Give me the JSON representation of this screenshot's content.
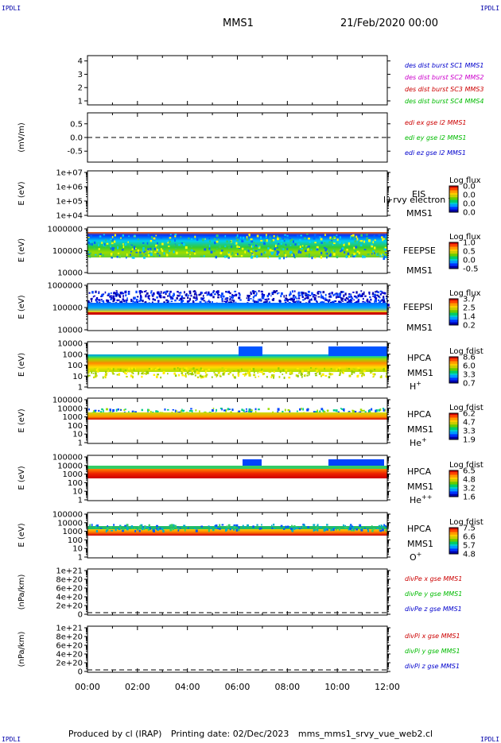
{
  "corners": {
    "tl": "IPDLI",
    "tr": "IPDLI",
    "bl": "IPDLI",
    "br": "IPDLI"
  },
  "header": {
    "spacecraft": "MMS1",
    "date": "21/Feb/2020 00:00"
  },
  "footer": {
    "producer": "Produced by cl (IRAP)",
    "print_date": "Printing date: 02/Dec/2023",
    "filename": "mms_mms1_srvy_vue_web2.cl"
  },
  "colors": {
    "red": "#cc0000",
    "magenta": "#cc00cc",
    "green": "#00bb00",
    "blue": "#0000cc"
  },
  "chart_data": [
    {
      "type": "line",
      "id": "p1",
      "yticks": [
        "1",
        "2",
        "3",
        "4"
      ],
      "ylim": [
        0.7,
        4.4
      ],
      "legend": [
        {
          "text": "des dist burst SC1 MMS1",
          "color": "blue"
        },
        {
          "text": "des dist burst SC2 MMS2",
          "color": "magenta"
        },
        {
          "text": "des dist burst SC3 MMS3",
          "color": "red"
        },
        {
          "text": "des dist burst SC4 MMS4",
          "color": "green"
        }
      ]
    },
    {
      "type": "line",
      "id": "p2",
      "ylabel": "(mV/m)",
      "yticks": [
        "0.5",
        "0.0",
        "-0.5"
      ],
      "ylim": [
        -0.9,
        0.9
      ],
      "zero_line": 0.0,
      "legend": [
        {
          "text": "edi ex gse l2 MMS1",
          "color": "red"
        },
        {
          "text": "edi ey gse l2 MMS1",
          "color": "green"
        },
        {
          "text": "edi ez gse l2 MMS1",
          "color": "blue"
        }
      ]
    },
    {
      "type": "heatmap",
      "id": "p3",
      "ylabel": "E (eV)",
      "yticks": [
        "1e+07",
        "1e+06",
        "1e+05",
        "1e+04"
      ],
      "inst": [
        "EIS"
      ],
      "mission": "MMS1",
      "overlay": "l+rvy electron to",
      "cbar": {
        "title": "Log flux",
        "ticks": [
          "0.0",
          "0.0",
          "0.0",
          "0.0"
        ]
      }
    },
    {
      "type": "heatmap",
      "id": "p4",
      "ylabel": "E (eV)",
      "yticks": [
        "1000000",
        "100000",
        "10000"
      ],
      "inst": [
        "FEEPSE"
      ],
      "mission": "MMS1",
      "cbar": {
        "title": "Log flux",
        "ticks": [
          "1.0",
          "0.5",
          "0.0",
          "-0.5"
        ]
      }
    },
    {
      "type": "heatmap",
      "id": "p5",
      "ylabel": "E (eV)",
      "yticks": [
        "1000000",
        "100000",
        "10000"
      ],
      "inst": [
        "FEEPSI"
      ],
      "mission": "MMS1",
      "cbar": {
        "title": "Log flux",
        "ticks": [
          "3.7",
          "2.5",
          "1.4",
          "0.2"
        ]
      }
    },
    {
      "type": "heatmap",
      "id": "p6",
      "ylabel": "E (eV)",
      "yticks": [
        "10000",
        "1000",
        "100",
        "10",
        "1"
      ],
      "inst": [
        "HPCA",
        "MMS1"
      ],
      "species": "H",
      "charge": "+",
      "cbar": {
        "title": "Log fdist",
        "ticks": [
          "8.6",
          "6.0",
          "3.3",
          "0.7"
        ]
      }
    },
    {
      "type": "heatmap",
      "id": "p7",
      "ylabel": "E (eV)",
      "yticks": [
        "100000",
        "10000",
        "1000",
        "100",
        "10",
        "1"
      ],
      "inst": [
        "HPCA",
        "MMS1"
      ],
      "species": "He",
      "charge": "+",
      "cbar": {
        "title": "Log fdist",
        "ticks": [
          "6.2",
          "4.7",
          "3.3",
          "1.9"
        ]
      }
    },
    {
      "type": "heatmap",
      "id": "p8",
      "ylabel": "E (eV)",
      "yticks": [
        "100000",
        "10000",
        "1000",
        "100",
        "10",
        "1"
      ],
      "inst": [
        "HPCA",
        "MMS1"
      ],
      "species": "He",
      "charge": "++",
      "cbar": {
        "title": "Log fdist",
        "ticks": [
          "6.5",
          "4.8",
          "3.2",
          "1.6"
        ]
      }
    },
    {
      "type": "heatmap",
      "id": "p9",
      "ylabel": "E (eV)",
      "yticks": [
        "100000",
        "10000",
        "1000",
        "100",
        "10",
        "1"
      ],
      "inst": [
        "HPCA",
        "MMS1"
      ],
      "species": "O",
      "charge": "+",
      "cbar": {
        "title": "Log fdist",
        "ticks": [
          "7.5",
          "6.6",
          "5.7",
          "4.8"
        ]
      }
    },
    {
      "type": "line",
      "id": "p10",
      "ylabel": "(nPa/km)",
      "yticks": [
        "1e+21",
        "8e+20",
        "6e+20",
        "4e+20",
        "2e+20",
        "0"
      ],
      "zero_line": 0,
      "legend": [
        {
          "text": "divPe x gse MMS1",
          "color": "red"
        },
        {
          "text": "divPe y gse MMS1",
          "color": "green"
        },
        {
          "text": "divPe z gse MMS1",
          "color": "blue"
        }
      ]
    },
    {
      "type": "line",
      "id": "p11",
      "ylabel": "(nPa/km)",
      "yticks": [
        "1e+21",
        "8e+20",
        "6e+20",
        "4e+20",
        "2e+20",
        "0"
      ],
      "zero_line": 0,
      "legend": [
        {
          "text": "divPi x gse MMS1",
          "color": "red"
        },
        {
          "text": "divPi y gse MMS1",
          "color": "green"
        },
        {
          "text": "divPi z gse MMS1",
          "color": "blue"
        }
      ],
      "xticks": [
        "00:00",
        "02:00",
        "04:00",
        "06:00",
        "08:00",
        "10:00",
        "12:00"
      ]
    }
  ]
}
